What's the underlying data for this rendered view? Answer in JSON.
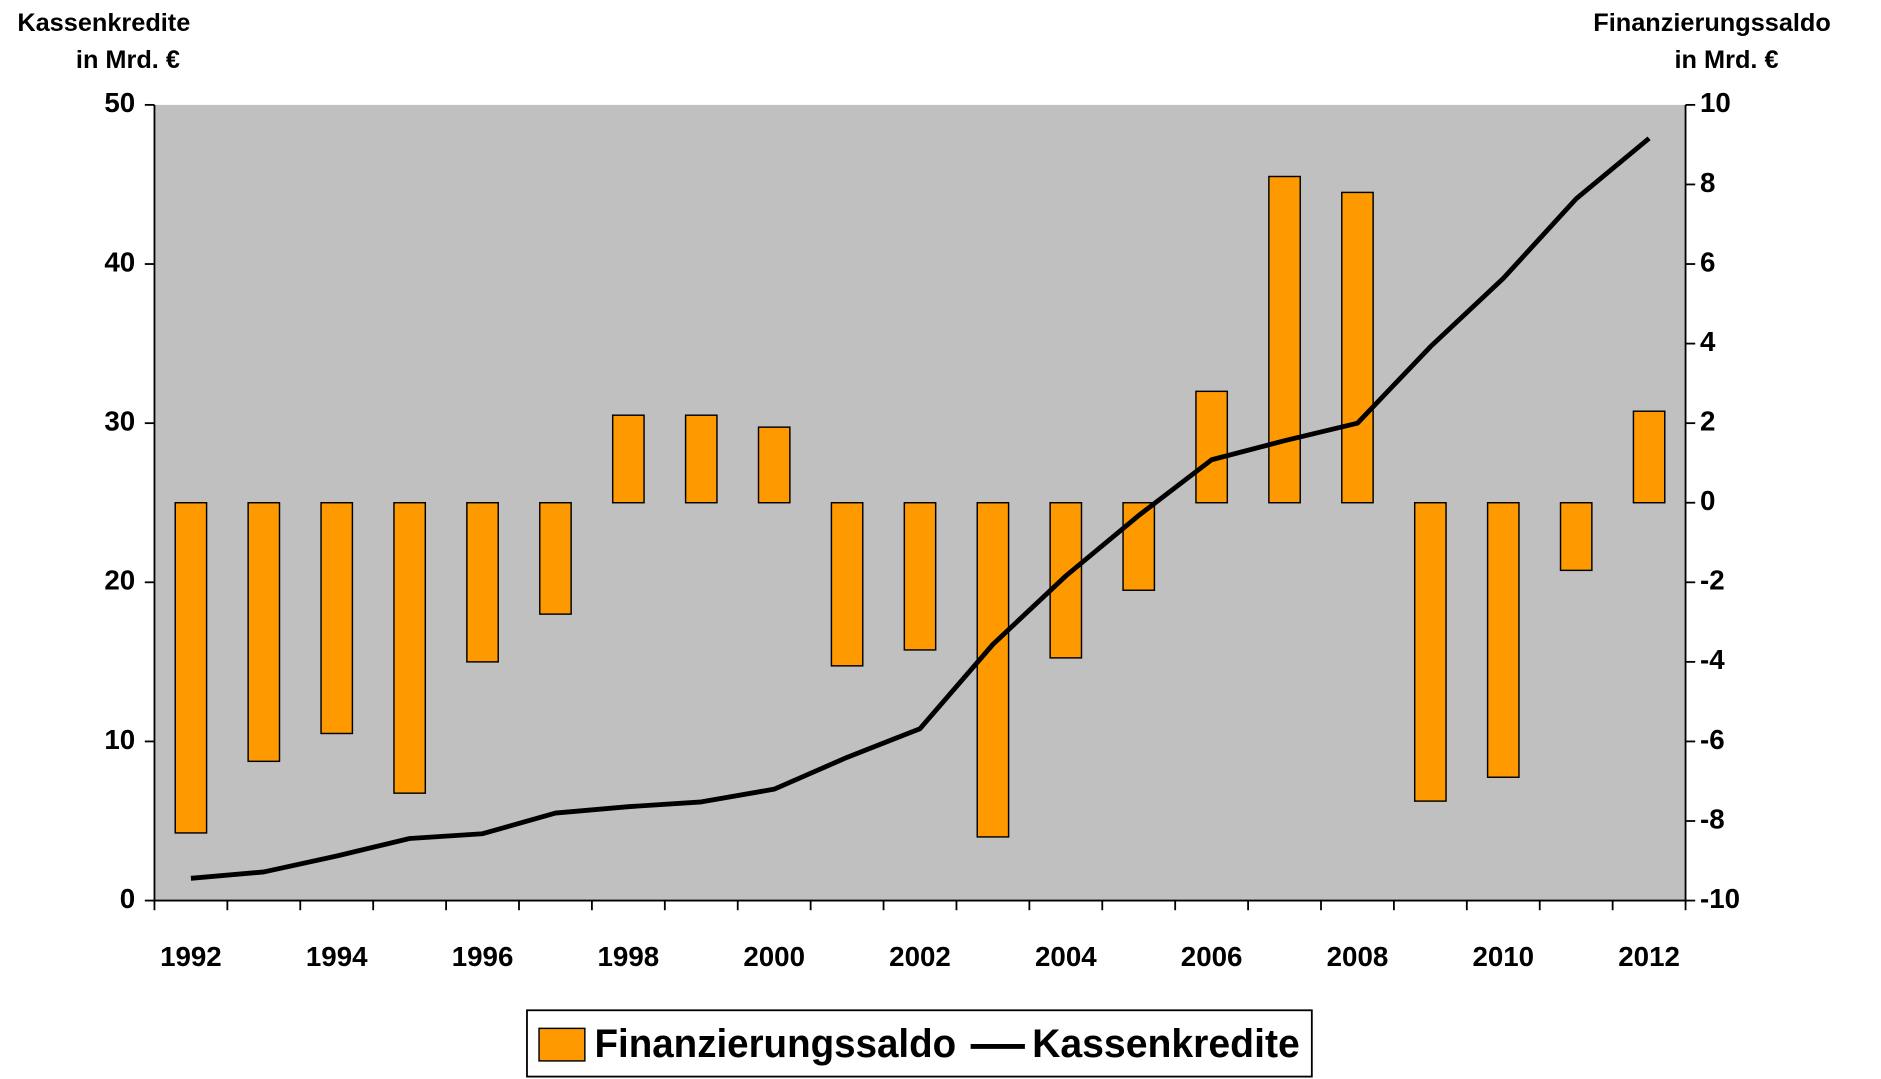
{
  "chart_data": {
    "type": "bar_line",
    "y_title": [
      "Kassenkredite",
      "in Mrd. €"
    ],
    "y2_title": [
      "Finanzierungssaldo",
      "in Mrd. €"
    ],
    "categories": [
      "1992",
      null,
      "1994",
      null,
      "1996",
      null,
      "1998",
      null,
      "2000",
      null,
      "2002",
      null,
      "2004",
      null,
      "2006",
      null,
      "2008",
      null,
      "2010",
      null,
      "2012"
    ],
    "series": [
      {
        "name": "Finanzierungssaldo",
        "type": "bar",
        "axis": "y2",
        "color": "#ff9900",
        "values": [
          -8.3,
          -6.5,
          -5.8,
          -7.3,
          -4.0,
          -2.8,
          2.2,
          2.2,
          1.9,
          -4.1,
          -3.7,
          -8.4,
          -3.9,
          -2.2,
          2.8,
          8.2,
          7.8,
          -7.5,
          -6.9,
          -1.7,
          2.3
        ]
      },
      {
        "name": "Kassenkredite",
        "type": "line",
        "axis": "y",
        "color": "#000000",
        "values": [
          1.4,
          1.8,
          2.8,
          3.9,
          4.2,
          5.5,
          5.9,
          6.2,
          7.0,
          9.0,
          10.8,
          16.1,
          20.4,
          24.2,
          27.7,
          28.9,
          30.0,
          34.8,
          39.1,
          44.1,
          47.9
        ]
      }
    ],
    "ylim": [
      0,
      50
    ],
    "yticks": [
      0,
      10,
      20,
      30,
      40,
      50
    ],
    "y2lim": [
      -10,
      10
    ],
    "y2ticks": [
      -10,
      -8,
      -6,
      -4,
      -2,
      0,
      2,
      4,
      6,
      8,
      10
    ],
    "plot_background": "#c0c0c0",
    "legend": "bottom"
  }
}
